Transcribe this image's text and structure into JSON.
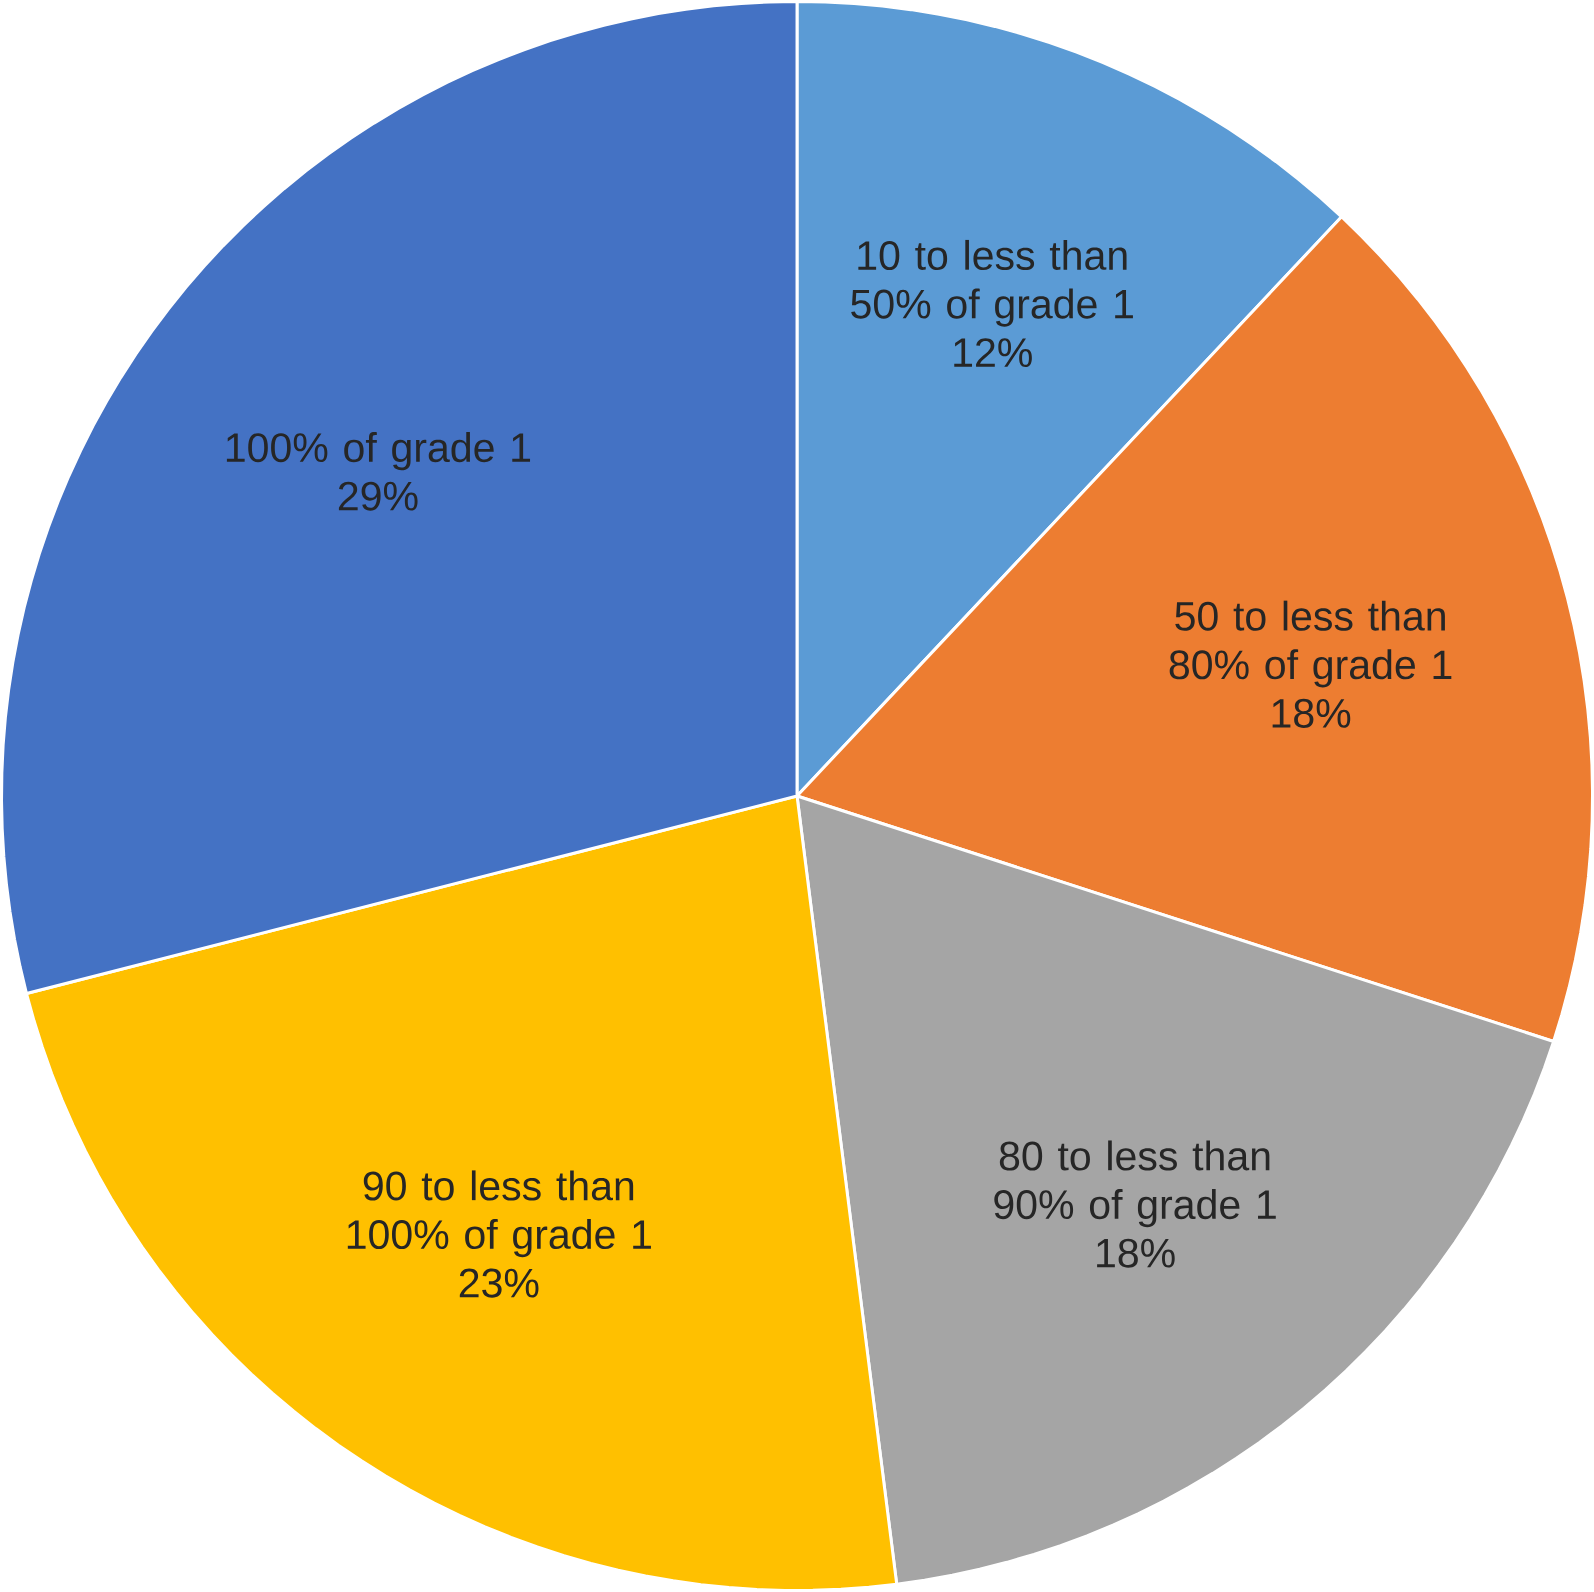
{
  "chart_data": {
    "type": "pie",
    "categories": [
      "10 to less than 50% of grade 1",
      "50 to less than 80% of grade 1",
      "80 to less than 90% of grade 1",
      "90 to less than 100% of grade 1",
      "100% of grade 1"
    ],
    "values": [
      12,
      18,
      18,
      23,
      29
    ],
    "value_labels": [
      "12%",
      "18%",
      "18%",
      "23%",
      "29%"
    ],
    "colors": [
      "#5b9bd5",
      "#ed7d31",
      "#a5a5a5",
      "#ffc000",
      "#4472c4"
    ]
  }
}
